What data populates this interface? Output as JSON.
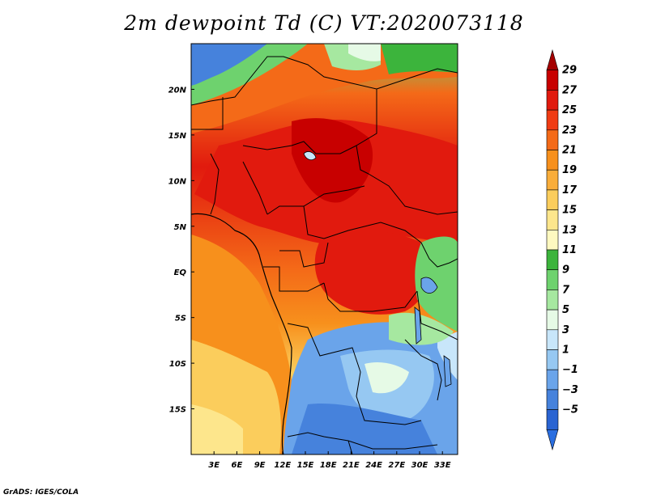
{
  "title": "2m dewpoint Td (C) VT:2020073118",
  "credit": "GrADS: IGES/COLA",
  "map": {
    "lon_range": [
      0,
      35
    ],
    "lat_range": [
      -20,
      25
    ],
    "x_ticks": [
      {
        "value": 3,
        "label": "3E"
      },
      {
        "value": 6,
        "label": "6E"
      },
      {
        "value": 9,
        "label": "9E"
      },
      {
        "value": 12,
        "label": "12E"
      },
      {
        "value": 15,
        "label": "15E"
      },
      {
        "value": 18,
        "label": "18E"
      },
      {
        "value": 21,
        "label": "21E"
      },
      {
        "value": 24,
        "label": "24E"
      },
      {
        "value": 27,
        "label": "27E"
      },
      {
        "value": 30,
        "label": "30E"
      },
      {
        "value": 33,
        "label": "33E"
      }
    ],
    "y_ticks": [
      {
        "value": 20,
        "label": "20N"
      },
      {
        "value": 15,
        "label": "15N"
      },
      {
        "value": 10,
        "label": "10N"
      },
      {
        "value": 5,
        "label": "5N"
      },
      {
        "value": 0,
        "label": "EQ"
      },
      {
        "value": -5,
        "label": "5S"
      },
      {
        "value": -10,
        "label": "10S"
      },
      {
        "value": -15,
        "label": "15S"
      }
    ]
  },
  "colorbar": {
    "labels": [
      "29",
      "27",
      "25",
      "23",
      "21",
      "19",
      "17",
      "15",
      "13",
      "11",
      "9",
      "7",
      "5",
      "3",
      "1",
      "−1",
      "−3",
      "−5"
    ],
    "colors": [
      "#a50000",
      "#c80000",
      "#e11a0e",
      "#f03c14",
      "#f46a18",
      "#f7901c",
      "#f9ad3a",
      "#fbcd5c",
      "#fde68c",
      "#fef9c0",
      "#3cb43c",
      "#6ed26e",
      "#a6e8a0",
      "#e6fae6",
      "#c8e6fa",
      "#96c8f2",
      "#6aa4ea",
      "#4682dc",
      "#2a64d2",
      "#2a6ee0"
    ]
  }
}
